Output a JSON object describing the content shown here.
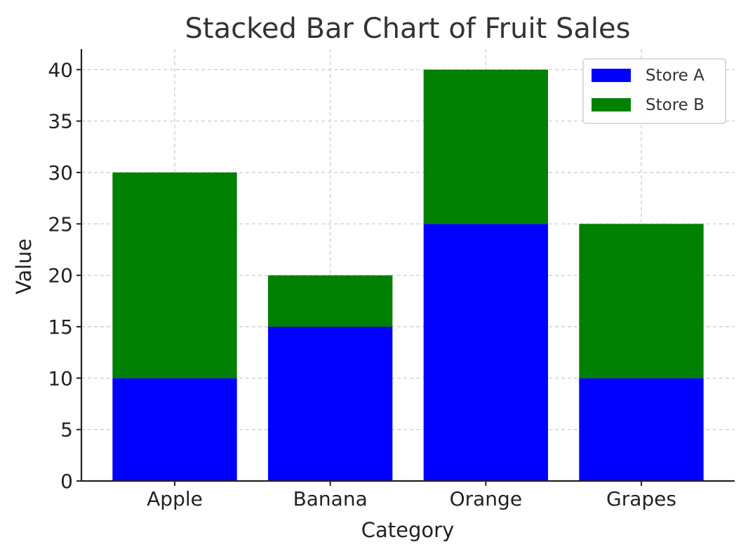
{
  "chart_data": {
    "type": "bar",
    "stacked": true,
    "title": "Stacked Bar Chart of Fruit Sales",
    "xlabel": "Category",
    "ylabel": "Value",
    "categories": [
      "Apple",
      "Banana",
      "Orange",
      "Grapes"
    ],
    "series": [
      {
        "name": "Store A",
        "color": "#0000ff",
        "values": [
          10,
          15,
          25,
          10
        ]
      },
      {
        "name": "Store B",
        "color": "#008000",
        "values": [
          20,
          5,
          15,
          15
        ]
      }
    ],
    "ylim": [
      0,
      42
    ],
    "yticks": [
      0,
      5,
      10,
      15,
      20,
      25,
      30,
      35,
      40
    ],
    "grid": true,
    "legend_position": "top-right"
  }
}
